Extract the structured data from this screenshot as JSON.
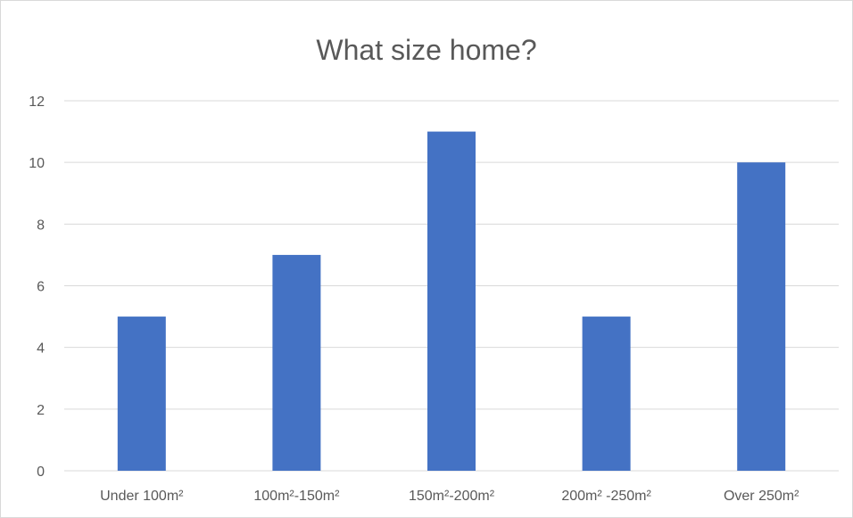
{
  "chart_data": {
    "type": "bar",
    "title": "What size home?",
    "xlabel": "",
    "ylabel": "",
    "categories": [
      "Under 100m²",
      "100m²-150m²",
      "150m²-200m²",
      "200m² -250m²",
      "Over 250m²"
    ],
    "values": [
      5,
      7,
      11,
      5,
      10
    ],
    "ylim": [
      0,
      12
    ],
    "yticks": [
      0,
      2,
      4,
      6,
      8,
      10,
      12
    ],
    "grid": true,
    "legend": "none",
    "bar_color": "#4472C4",
    "grid_color": "#d9d9d9"
  }
}
